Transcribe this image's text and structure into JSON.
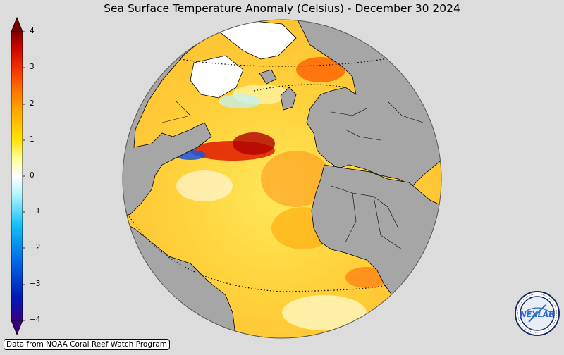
{
  "title": "Sea Surface Temperature Anomaly (Celsius) - December 30 2024",
  "colorbar": {
    "ticks": [
      "4",
      "3",
      "2",
      "1",
      "0",
      "−1",
      "−2",
      "−3",
      "−4"
    ],
    "colors": [
      "#3a0086",
      "#0018b8",
      "#0066e6",
      "#14bff5",
      "#b8f6ff",
      "#ffffff",
      "#ffff99",
      "#ffe000",
      "#ffac00",
      "#ff7000",
      "#f22a00",
      "#c80000",
      "#7a0000"
    ]
  },
  "map": {
    "land_color": "#a6a6a6",
    "ocean_warm_color": "#ffd24a"
  },
  "credit": "Data from NOAA Coral Reef Watch Program",
  "logo": {
    "text": "NEXLAB",
    "icon": "nexlab-logo-icon"
  }
}
